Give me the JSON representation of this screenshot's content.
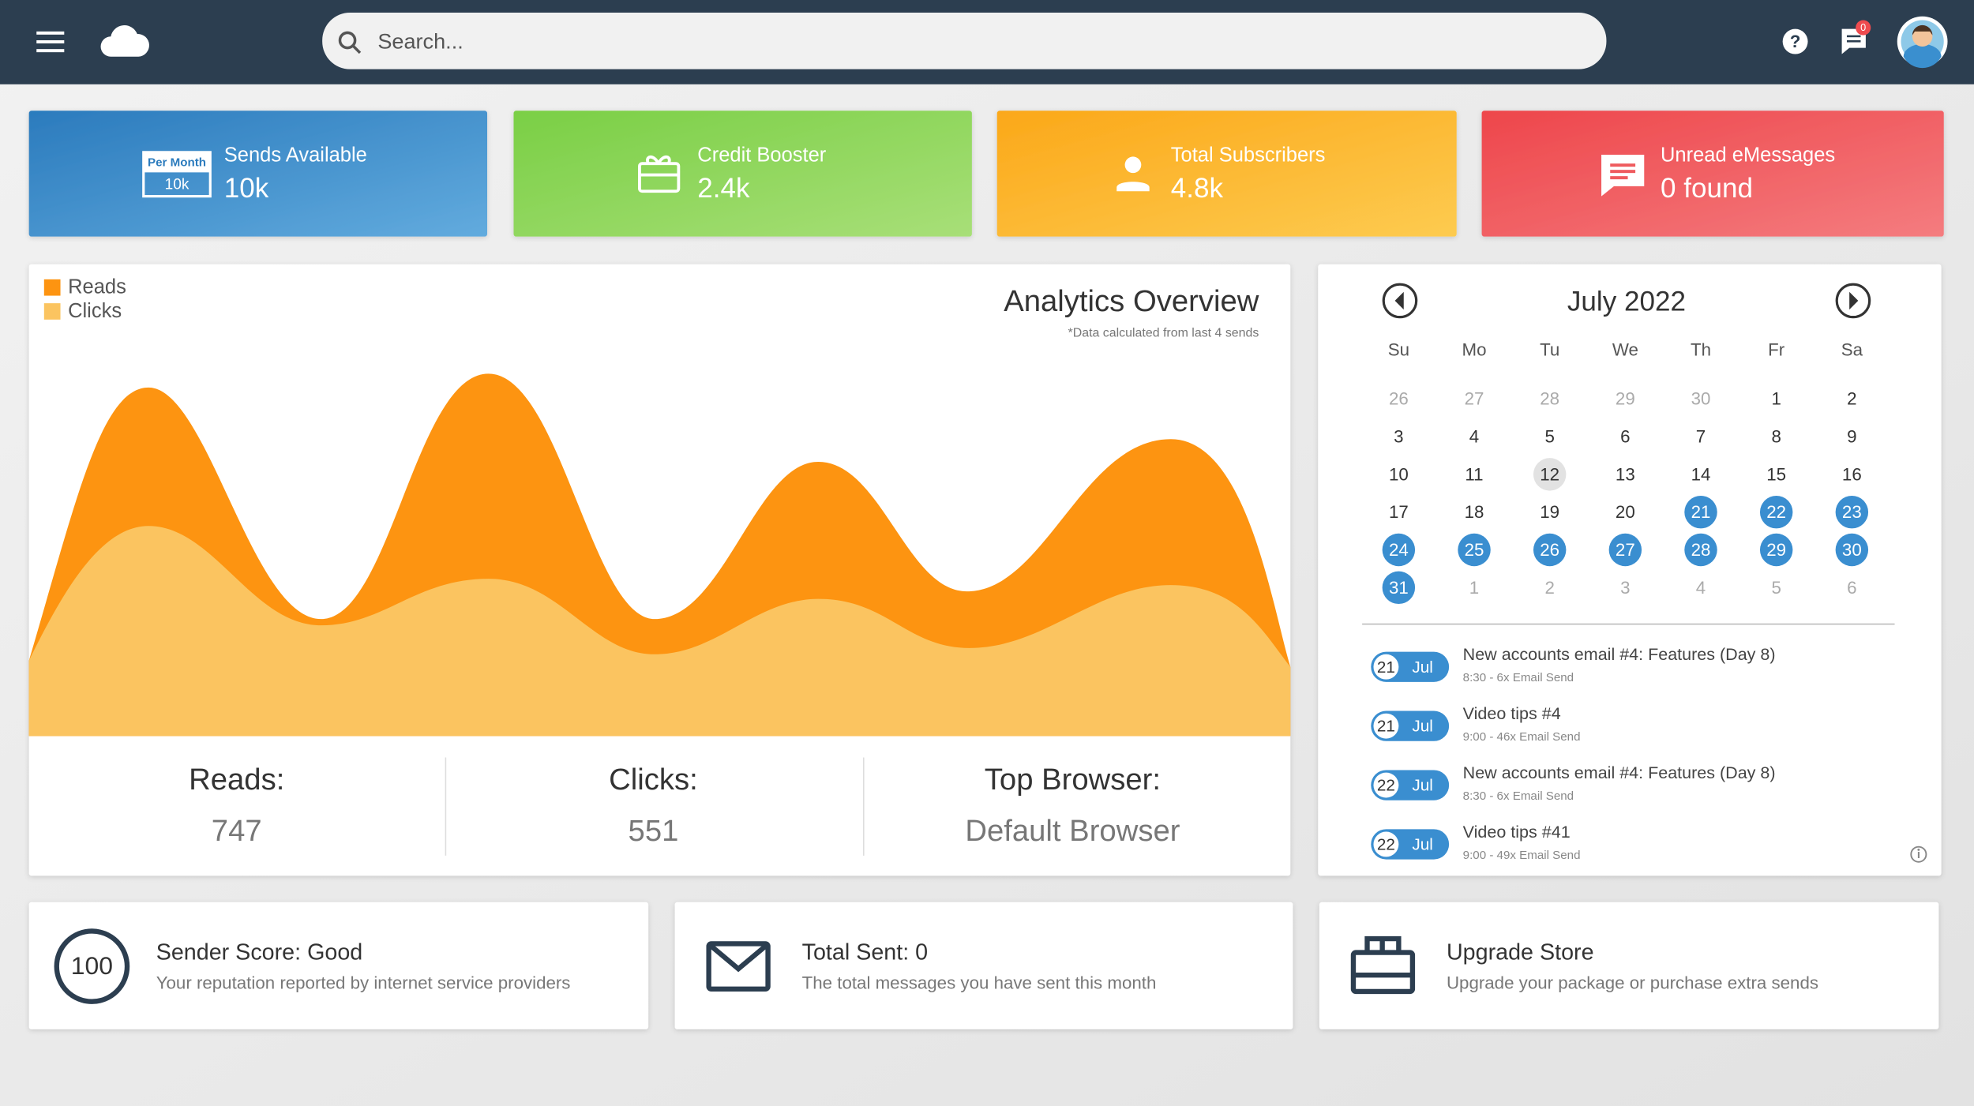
{
  "header": {
    "search_placeholder": "Search...",
    "notifications": "0"
  },
  "cards": [
    {
      "badge_caption": "Per Month",
      "badge_value": "10k",
      "label": "Sends Available",
      "value": "10k"
    },
    {
      "label": "Credit Booster",
      "value": "2.4k"
    },
    {
      "label": "Total Subscribers",
      "value": "4.8k"
    },
    {
      "label": "Unread eMessages",
      "value": "0 found"
    }
  ],
  "analytics": {
    "title": "Analytics Overview",
    "note": "*Data calculated from last 4 sends",
    "legend": [
      {
        "name": "Reads",
        "color": "#fd9411"
      },
      {
        "name": "Clicks",
        "color": "#fbc460"
      }
    ],
    "stats": [
      {
        "label": "Reads:",
        "value": "747"
      },
      {
        "label": "Clicks:",
        "value": "551"
      },
      {
        "label": "Top Browser:",
        "value": "Default Browser"
      }
    ]
  },
  "calendar": {
    "title": "July 2022",
    "weekdays": [
      "Su",
      "Mo",
      "Tu",
      "We",
      "Th",
      "Fr",
      "Sa"
    ],
    "days": [
      {
        "label": "26",
        "kind": "other"
      },
      {
        "label": "27",
        "kind": "other"
      },
      {
        "label": "28",
        "kind": "other"
      },
      {
        "label": "29",
        "kind": "other"
      },
      {
        "label": "30",
        "kind": "other"
      },
      {
        "label": "1",
        "kind": "day"
      },
      {
        "label": "2",
        "kind": "day"
      },
      {
        "label": "3",
        "kind": "day"
      },
      {
        "label": "4",
        "kind": "day"
      },
      {
        "label": "5",
        "kind": "day"
      },
      {
        "label": "6",
        "kind": "day"
      },
      {
        "label": "7",
        "kind": "day"
      },
      {
        "label": "8",
        "kind": "day"
      },
      {
        "label": "9",
        "kind": "day"
      },
      {
        "label": "10",
        "kind": "day"
      },
      {
        "label": "11",
        "kind": "day"
      },
      {
        "label": "12",
        "kind": "today"
      },
      {
        "label": "13",
        "kind": "day"
      },
      {
        "label": "14",
        "kind": "day"
      },
      {
        "label": "15",
        "kind": "day"
      },
      {
        "label": "16",
        "kind": "day"
      },
      {
        "label": "17",
        "kind": "day"
      },
      {
        "label": "18",
        "kind": "day"
      },
      {
        "label": "19",
        "kind": "day"
      },
      {
        "label": "20",
        "kind": "day"
      },
      {
        "label": "21",
        "kind": "selected"
      },
      {
        "label": "22",
        "kind": "selected"
      },
      {
        "label": "23",
        "kind": "selected"
      },
      {
        "label": "24",
        "kind": "selected"
      },
      {
        "label": "25",
        "kind": "selected"
      },
      {
        "label": "26",
        "kind": "selected"
      },
      {
        "label": "27",
        "kind": "selected"
      },
      {
        "label": "28",
        "kind": "selected"
      },
      {
        "label": "29",
        "kind": "selected"
      },
      {
        "label": "30",
        "kind": "selected"
      },
      {
        "label": "31",
        "kind": "selected"
      },
      {
        "label": "1",
        "kind": "other"
      },
      {
        "label": "2",
        "kind": "other"
      },
      {
        "label": "3",
        "kind": "other"
      },
      {
        "label": "4",
        "kind": "other"
      },
      {
        "label": "5",
        "kind": "other"
      },
      {
        "label": "6",
        "kind": "other"
      }
    ],
    "events": [
      {
        "day": "21",
        "month": "Jul",
        "title": "New accounts email #4: Features (Day 8)",
        "detail": "8:30 - 6x Email Send"
      },
      {
        "day": "21",
        "month": "Jul",
        "title": "Video tips #4",
        "detail": "9:00 - 46x Email Send"
      },
      {
        "day": "22",
        "month": "Jul",
        "title": "New accounts email #4: Features (Day 8)",
        "detail": "8:30 - 6x Email Send"
      },
      {
        "day": "22",
        "month": "Jul",
        "title": "Video tips #41",
        "detail": "9:00 - 49x Email Send"
      }
    ]
  },
  "tiles": [
    {
      "badge": "100",
      "title": "Sender Score: Good",
      "text": "Your reputation reported by internet service providers"
    },
    {
      "title": "Total Sent: 0",
      "text": "The total messages you have sent this month"
    },
    {
      "title": "Upgrade Store",
      "text": "Upgrade your package or purchase extra sends"
    }
  ]
}
